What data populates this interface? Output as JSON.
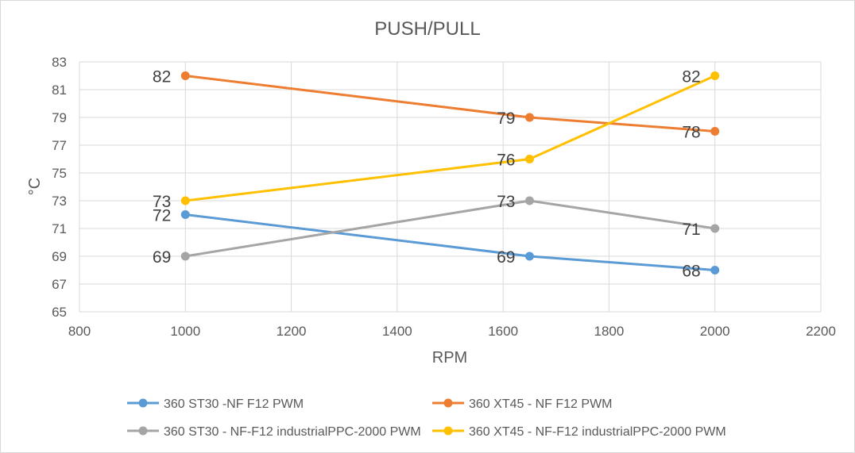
{
  "chart_data": {
    "type": "line",
    "title": "PUSH/PULL",
    "xlabel": "RPM",
    "ylabel": "°C",
    "xlim": [
      800,
      2200
    ],
    "ylim": [
      65,
      83
    ],
    "xticks": [
      800,
      1000,
      1200,
      1400,
      1600,
      1800,
      2000,
      2200
    ],
    "yticks": [
      65,
      67,
      69,
      71,
      73,
      75,
      77,
      79,
      81,
      83
    ],
    "grid": true,
    "legend_position": "bottom",
    "series": [
      {
        "name": "360 ST30 -NF F12 PWM",
        "color": "#5b9bd5",
        "x": [
          1000,
          1650,
          2000
        ],
        "y": [
          72,
          69,
          68
        ]
      },
      {
        "name": "360 XT45 - NF F12 PWM",
        "color": "#ed7d31",
        "x": [
          1000,
          1650,
          2000
        ],
        "y": [
          82,
          79,
          78
        ]
      },
      {
        "name": "360 ST30 - NF-F12 industrialPPC-2000 PWM",
        "color": "#a5a5a5",
        "x": [
          1000,
          1650,
          2000
        ],
        "y": [
          69,
          73,
          71
        ]
      },
      {
        "name": "360 XT45 - NF-F12 industrialPPC-2000 PWM",
        "color": "#ffc000",
        "x": [
          1000,
          1650,
          2000
        ],
        "y": [
          73,
          76,
          82
        ]
      }
    ]
  }
}
